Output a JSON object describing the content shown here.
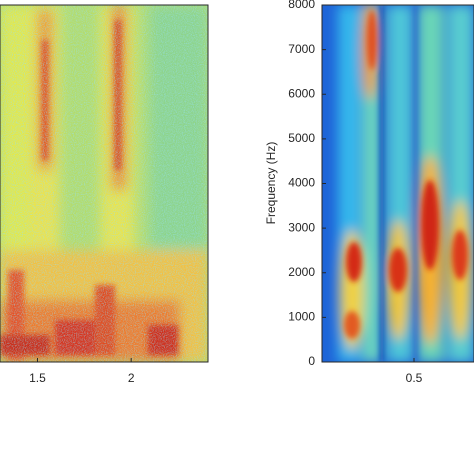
{
  "chart_data": [
    {
      "type": "spectrogram",
      "xlim": [
        1.3,
        2.41
      ],
      "xticks": [
        1.5,
        2
      ]
    },
    {
      "type": "spectrogram",
      "ylabel": "Frequency (Hz)",
      "xlim": [
        0,
        0.826
      ],
      "xticks": [
        0.5
      ],
      "ylim": [
        0,
        8000
      ],
      "yticks": [
        0,
        1000,
        2000,
        3000,
        4000,
        5000,
        6000,
        7000,
        8000
      ]
    }
  ]
}
